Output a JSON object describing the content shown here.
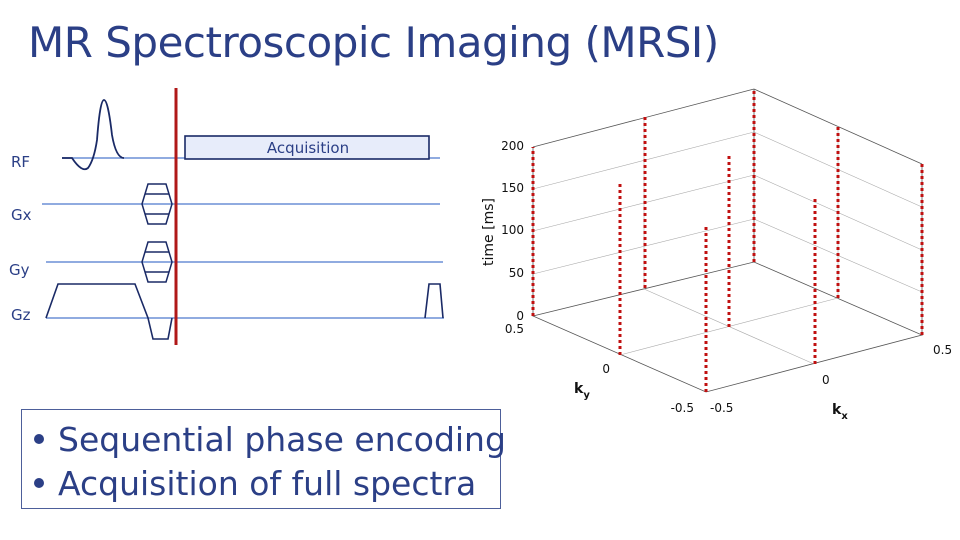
{
  "title": "MR Spectroscopic Imaging (MRSI)",
  "sequence": {
    "rows": [
      "RF",
      "Gx",
      "Gy",
      "Gz"
    ],
    "acquisition_label": "Acquisition"
  },
  "kspace_plot": {
    "time_axis_label": "time [ms]",
    "time_ticks": [
      "0",
      "50",
      "100",
      "150",
      "200"
    ],
    "kx_label": "k",
    "kx_sub": "x",
    "kx_ticks": [
      "-0.5",
      "0",
      "0.5"
    ],
    "ky_label": "k",
    "ky_sub": "y",
    "ky_ticks": [
      "-0.5",
      "0",
      "0.5"
    ],
    "marker_color": "#c01010"
  },
  "bullets": [
    "Sequential phase encoding",
    "Acquisition of full spectra"
  ]
}
